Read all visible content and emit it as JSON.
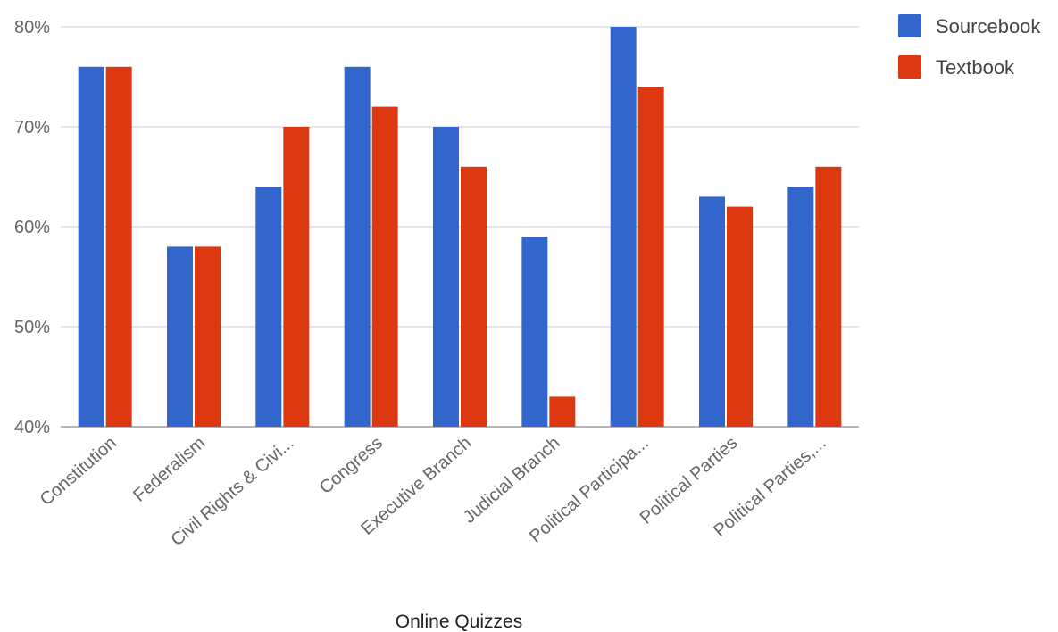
{
  "chart_data": {
    "type": "bar",
    "title": "",
    "xlabel": "Online Quizzes",
    "ylabel": "",
    "ylim": [
      40,
      80
    ],
    "yticks": [
      "40%",
      "50%",
      "60%",
      "70%",
      "80%"
    ],
    "ytick_values": [
      40,
      50,
      60,
      70,
      80
    ],
    "grid": true,
    "legend_position": "top-right",
    "categories": [
      "Constitution",
      "Federalism",
      "Civil Rights & Civi...",
      "Congress",
      "Executive Branch",
      "Judicial Branch",
      "Political Participa...",
      "Political Parties",
      "Political Parties,..."
    ],
    "series": [
      {
        "name": "Sourcebook",
        "color": "#3366cc",
        "values": [
          76,
          58,
          64,
          76,
          70,
          59,
          80,
          63,
          64
        ]
      },
      {
        "name": "Textbook",
        "color": "#dc3912",
        "values": [
          76,
          58,
          70,
          72,
          66,
          43,
          74,
          62,
          66
        ]
      }
    ]
  }
}
